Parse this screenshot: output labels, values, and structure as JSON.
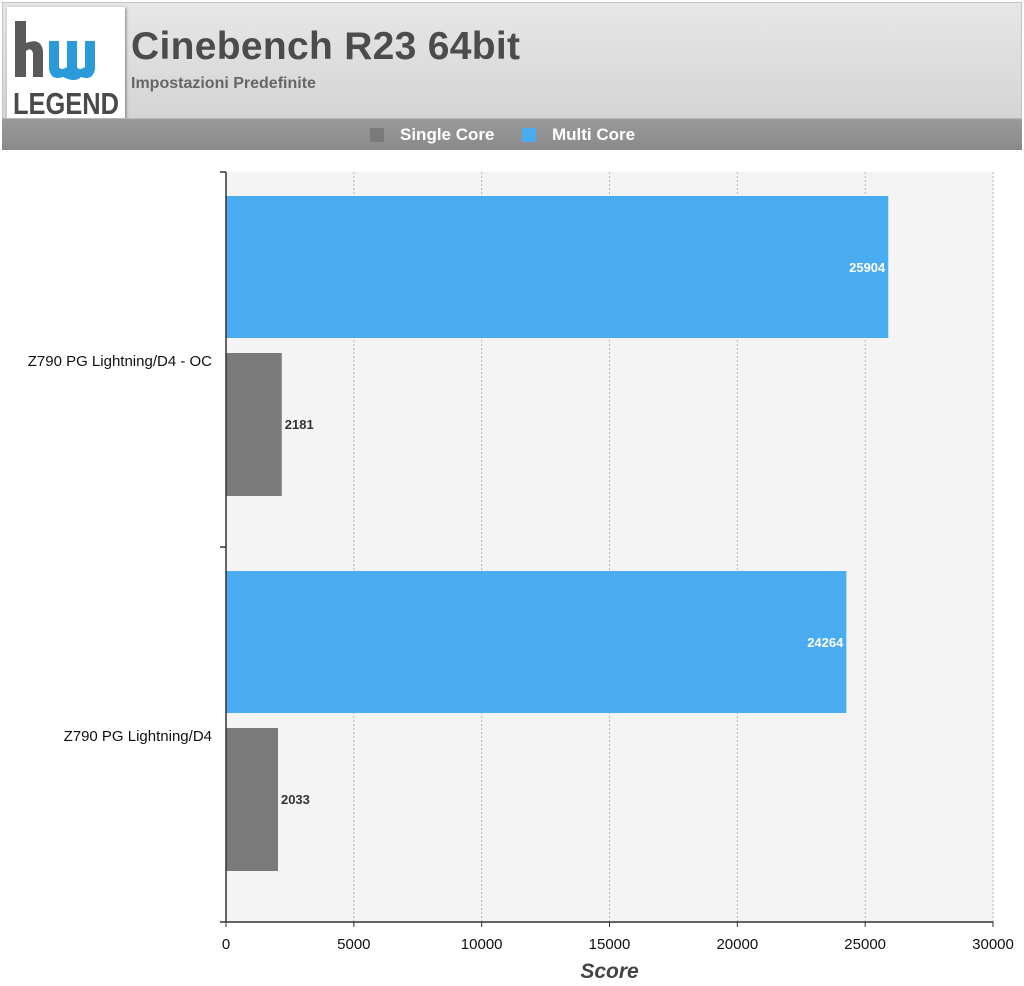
{
  "header": {
    "title": "Cinebench R23 64bit",
    "subtitle": "Impostazioni Predefinite"
  },
  "logo": {
    "top_text": "hw",
    "bottom_text": "LEGEND",
    "colors": {
      "top_dark": "#5a5a5a",
      "top_blue": "#2a9ad9",
      "bottom": "#4a4a4a"
    }
  },
  "chart_data": {
    "type": "bar",
    "orientation": "horizontal",
    "title": "Cinebench R23 64bit",
    "subtitle": "Impostazioni Predefinite",
    "categories": [
      "Z790 PG Lightning/D4 - OC",
      "Z790 PG Lightning/D4"
    ],
    "series": [
      {
        "name": "Single Core",
        "color": "#7a7a7a",
        "values": [
          2181,
          2033
        ]
      },
      {
        "name": "Multi Core",
        "color": "#49acf0",
        "values": [
          25904,
          24264
        ]
      }
    ],
    "xlabel": "Score",
    "xlim": [
      0,
      30000
    ],
    "xticks": [
      0,
      5000,
      10000,
      15000,
      20000,
      25000,
      30000
    ],
    "grid": true,
    "legend_position": "top-center"
  }
}
